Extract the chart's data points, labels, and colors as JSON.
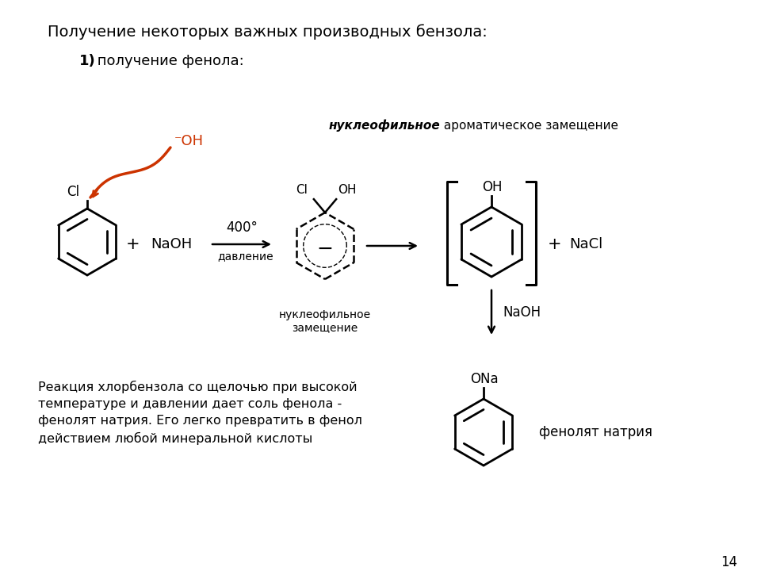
{
  "title": "Получение некоторых важных производных бензола:",
  "subtitle_bold": "1)",
  "subtitle_text": " получение фенола:",
  "nucleophilic_label_bold": "нуклеофильное",
  "nucleophilic_label_rest": " ароматическое замещение",
  "reaction_label": "нуклеофильное\nзамещение",
  "conditions_top": "400°",
  "conditions_bot": "давление",
  "naoh_label": "NaOH",
  "nacl_label": "NaCl",
  "naoh_arrow_label": "NaOH",
  "phenolate_label": "фенолят натрия",
  "bottom_text": "Реакция хлорбензола со щелочью при высокой\nтемпературе и давлении дает соль фенола -\nфенолят натрия. Его легко превратить в фенол\nдействием любой минеральной кислоты",
  "page_number": "14",
  "bg_color": "#ffffff",
  "fg_color": "#000000",
  "arrow_color": "#cc3300"
}
